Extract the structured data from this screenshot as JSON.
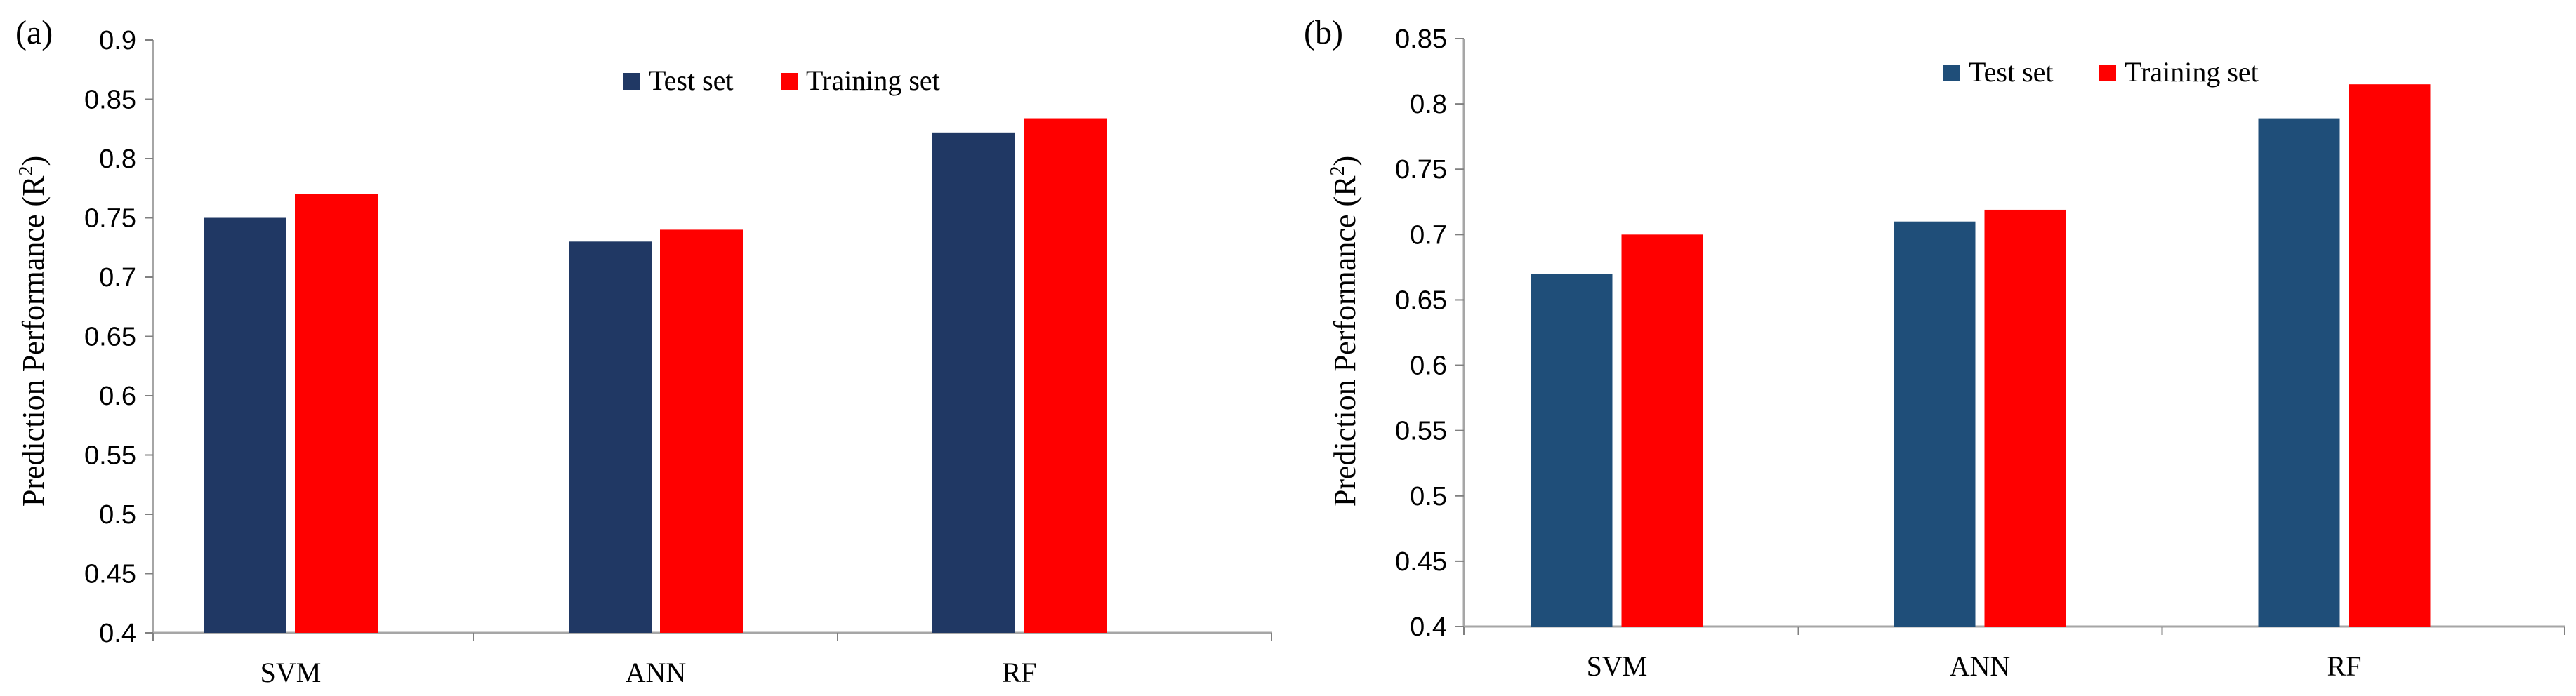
{
  "colors": {
    "test_a": "#203864",
    "test_b": "#1f4e79",
    "training": "#ff0000",
    "axis": "#a6a6a6",
    "tick": "#808080"
  },
  "chart_data": [
    {
      "type": "bar",
      "panel_label": "(a)",
      "categories": [
        "SVM",
        "ANN",
        "RF"
      ],
      "series": [
        {
          "name": "Test set",
          "values": [
            0.75,
            0.73,
            0.822
          ]
        },
        {
          "name": "Training set",
          "values": [
            0.77,
            0.74,
            0.834
          ]
        }
      ],
      "ylabel": "Prediction Performance (R",
      "ylabel_sup": "2",
      "ylabel_close": ")",
      "ylim": [
        0.4,
        0.9
      ],
      "yticks": [
        0.4,
        0.45,
        0.5,
        0.55,
        0.6,
        0.65,
        0.7,
        0.75,
        0.8,
        0.85,
        0.9
      ],
      "ytick_labels": [
        "0.4",
        "0.45",
        "0.5",
        "0.55",
        "0.6",
        "0.65",
        "0.7",
        "0.75",
        "0.8",
        "0.85",
        "0.9"
      ],
      "legend": "top-center",
      "grid": false
    },
    {
      "type": "bar",
      "panel_label": "(b)",
      "categories": [
        "SVM",
        "ANN",
        "RF"
      ],
      "series": [
        {
          "name": "Test set",
          "values": [
            0.67,
            0.71,
            0.789
          ]
        },
        {
          "name": "Training set",
          "values": [
            0.7,
            0.719,
            0.815
          ]
        }
      ],
      "ylabel": "Prediction Performance (R",
      "ylabel_sup": "2",
      "ylabel_close": ")",
      "ylim": [
        0.4,
        0.85
      ],
      "yticks": [
        0.4,
        0.45,
        0.5,
        0.55,
        0.6,
        0.65,
        0.7,
        0.75,
        0.8,
        0.85
      ],
      "ytick_labels": [
        "0.4",
        "0.45",
        "0.5",
        "0.55",
        "0.6",
        "0.65",
        "0.7",
        "0.75",
        "0.8",
        "0.85"
      ],
      "legend": "top-center",
      "grid": false
    }
  ]
}
